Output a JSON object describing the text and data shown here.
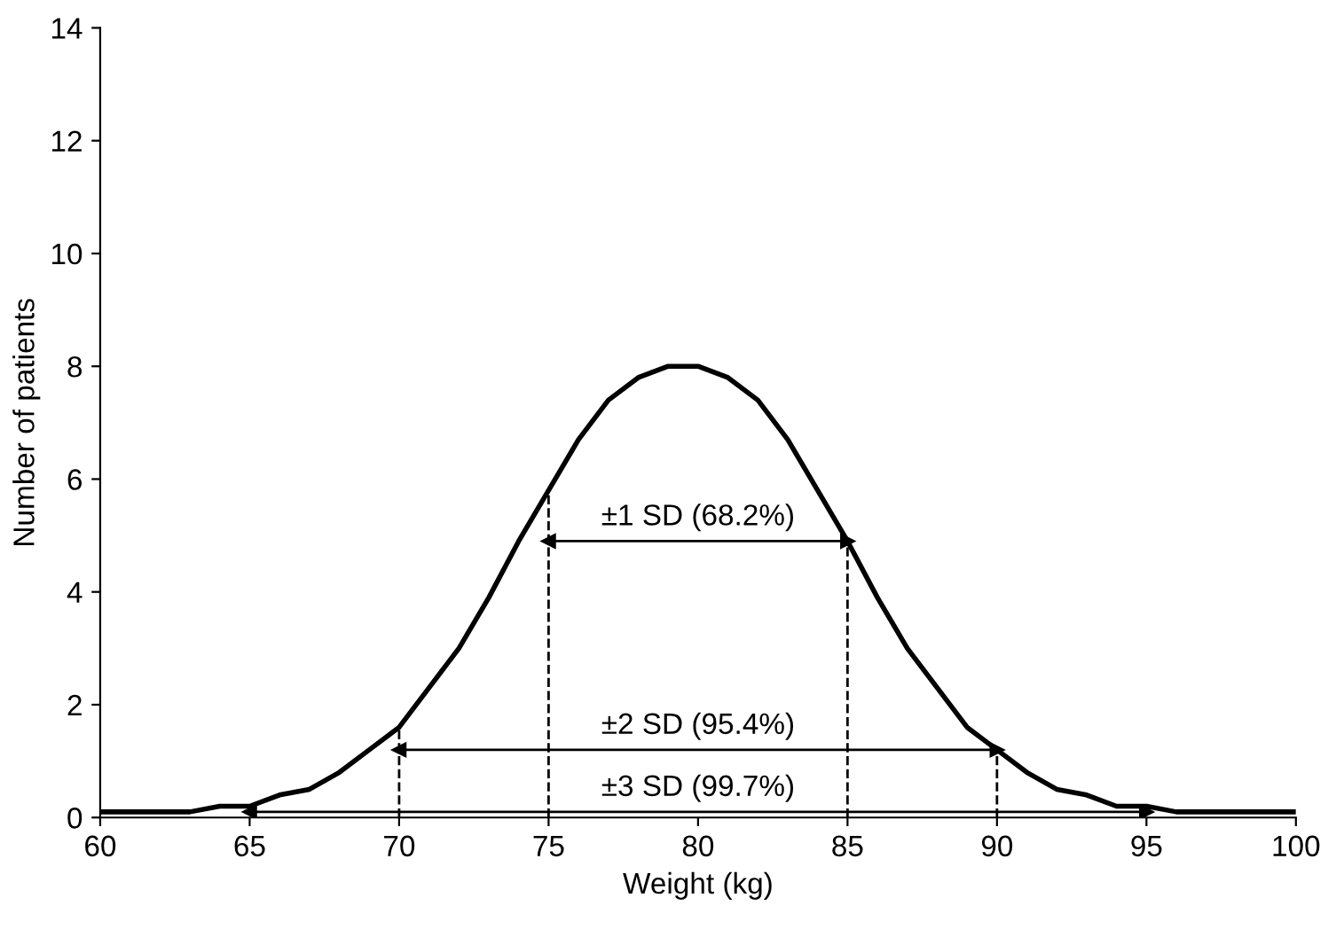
{
  "chart_data": {
    "type": "line",
    "xlabel": "Weight (kg)",
    "ylabel": "Number of patients",
    "x": [
      60,
      61,
      62,
      63,
      64,
      65,
      66,
      67,
      68,
      69,
      70,
      71,
      72,
      73,
      74,
      75,
      76,
      77,
      78,
      79,
      80,
      81,
      82,
      83,
      84,
      85,
      86,
      87,
      88,
      89,
      90,
      91,
      92,
      93,
      94,
      95,
      96,
      97,
      98,
      99,
      100
    ],
    "series": [
      {
        "color": "#000000",
        "values": [
          0.1,
          0.1,
          0.1,
          0.1,
          0.2,
          0.2,
          0.4,
          0.5,
          0.8,
          1.2,
          1.6,
          2.3,
          3.0,
          3.9,
          4.9,
          5.8,
          6.7,
          7.4,
          7.8,
          8.0,
          8.0,
          7.8,
          7.4,
          6.7,
          5.8,
          4.9,
          3.9,
          3.0,
          2.3,
          1.6,
          1.2,
          0.8,
          0.5,
          0.4,
          0.2,
          0.2,
          0.1,
          0.1,
          0.1,
          0.1,
          0.1
        ]
      },
      {
        "color": "#000000",
        "x": [
          75,
          85
        ],
        "values": [
          4.9,
          4.9
        ],
        "marker": "triangle"
      },
      {
        "color": "#000000",
        "x": [
          70,
          90
        ],
        "values": [
          1.2,
          1.2
        ],
        "marker": "triangle"
      },
      {
        "color": "#000000",
        "x": [
          65,
          95
        ],
        "values": [
          0.1,
          0.1
        ],
        "marker": "triangle"
      }
    ],
    "xlim": [
      60,
      100
    ],
    "xticks": [
      60,
      65,
      70,
      75,
      80,
      85,
      90,
      95,
      100
    ],
    "ylim": [
      0,
      14
    ],
    "yticks": [
      0,
      2,
      4,
      6,
      8,
      10,
      12,
      14
    ],
    "ref_lines": [
      {
        "axis": "x",
        "value": 75,
        "color": "#000000",
        "line_style": "dashed"
      },
      {
        "axis": "x",
        "value": 85,
        "color": "#000000",
        "line_style": "dashed"
      },
      {
        "axis": "x",
        "value": 70,
        "color": "#000000",
        "line_style": "dashed"
      },
      {
        "axis": "x",
        "value": 90,
        "color": "#000000",
        "line_style": "dashed"
      }
    ],
    "annotations": [
      "±1 SD (68.2%)",
      "±2 SD (95.4%)",
      "±3 SD (99.7%)"
    ]
  }
}
